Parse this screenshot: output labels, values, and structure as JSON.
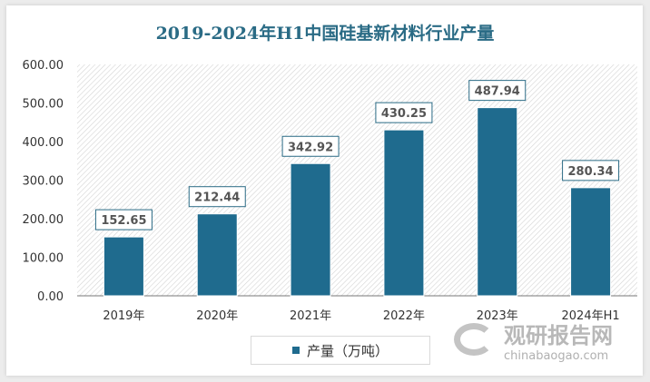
{
  "chart_data": {
    "type": "bar",
    "title": "2019-2024年H1中国硅基新材料行业产量",
    "categories": [
      "2019年",
      "2020年",
      "2021年",
      "2022年",
      "2023年",
      "2024年H1"
    ],
    "series": [
      {
        "name": "产量（万吨）",
        "values": [
          152.65,
          212.44,
          342.92,
          430.25,
          487.94,
          280.34
        ]
      }
    ],
    "data_labels": [
      "152.65",
      "212.44",
      "342.92",
      "430.25",
      "487.94",
      "280.34"
    ],
    "yticks": [
      "0.00",
      "100.00",
      "200.00",
      "300.00",
      "400.00",
      "500.00",
      "600.00"
    ],
    "ylim": [
      0,
      600
    ],
    "grid": false,
    "legend": "bottom",
    "bar_color": "#1f6b8e"
  },
  "watermark": {
    "cn": "观研报告网",
    "en": "chinabaogao.com"
  }
}
